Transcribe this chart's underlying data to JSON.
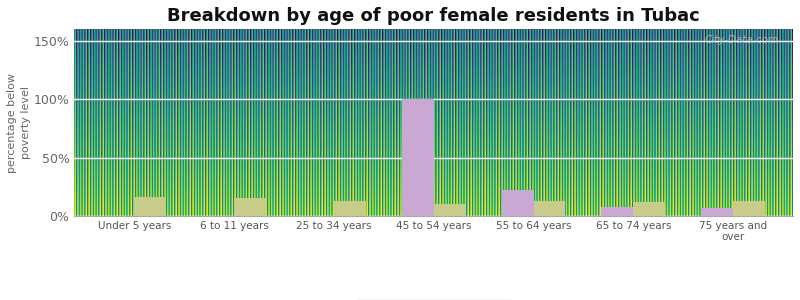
{
  "title": "Breakdown by age of poor female residents in Tubac",
  "categories": [
    "Under 5 years",
    "6 to 11 years",
    "25 to 34 years",
    "45 to 54 years",
    "55 to 64 years",
    "65 to 74 years",
    "75 years and\nover"
  ],
  "tubac_values": [
    0,
    0,
    0,
    100,
    22,
    8,
    7
  ],
  "arizona_values": [
    16,
    15,
    13,
    10,
    13,
    12,
    13
  ],
  "tubac_color": "#c9a8d4",
  "arizona_color": "#c8cc8a",
  "ylabel": "percentage below\npoverty level",
  "ylim": [
    0,
    160
  ],
  "yticks": [
    0,
    50,
    100,
    150
  ],
  "ytick_labels": [
    "0%",
    "50%",
    "100%",
    "150%"
  ],
  "plot_bg_color": "#e8f0d8",
  "outer_bg": "#ffffff",
  "title_fontsize": 13,
  "bar_width": 0.32,
  "watermark": "City-Data.com"
}
